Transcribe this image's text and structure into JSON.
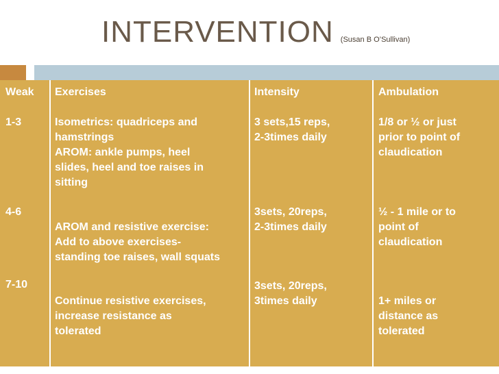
{
  "title": "INTERVENTION",
  "subtitle": "(Susan B O’Sullivan)",
  "table": {
    "headers": {
      "week": "Weak",
      "exercises": "Exercises",
      "intensity": "Intensity",
      "ambulation": "Ambulation"
    },
    "rows": [
      {
        "week": "1-3",
        "exercises": [
          "Isometrics: quadriceps and",
          "hamstrings",
          "AROM: ankle pumps, heel",
          "slides, heel and toe raises in",
          "sitting"
        ],
        "intensity": [
          "3 sets,15 reps,",
          "2-3times daily"
        ],
        "ambulation": [
          "1/8 or ½  or just",
          "prior to point of",
          "claudication"
        ]
      },
      {
        "week": "4-6",
        "exercises": [
          "AROM and resistive exercise:",
          "Add to above exercises-",
          "standing toe raises, wall squats"
        ],
        "intensity": [
          "3sets, 20reps,",
          "2-3times daily"
        ],
        "ambulation": [
          "½ - 1 mile or to",
          "point of",
          "claudication"
        ]
      },
      {
        "week": "7-10",
        "exercises": [
          "Continue resistive exercises,",
          "increase resistance as",
          "tolerated"
        ],
        "intensity": [
          "3sets, 20reps,",
          "3times daily"
        ],
        "ambulation": [
          "1+   miles or",
          "distance as",
          "tolerated"
        ]
      }
    ]
  }
}
